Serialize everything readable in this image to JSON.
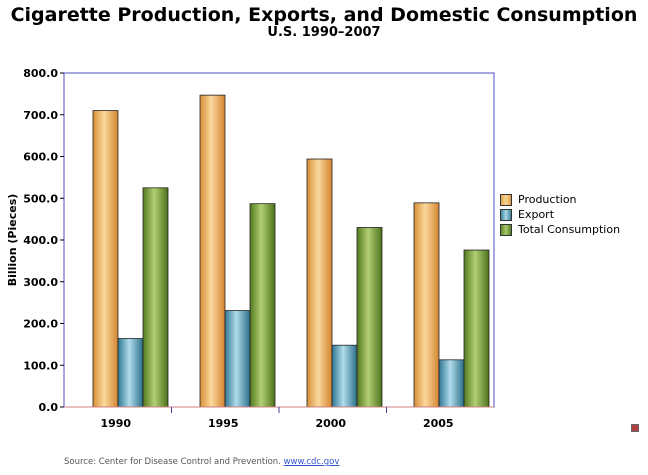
{
  "chart_data": {
    "type": "bar",
    "title": "Cigarette Production, Exports, and Domestic Consumption",
    "subtitle": "U.S. 1990–2007",
    "xlabel": "",
    "ylabel": "Billion (Pieces)",
    "ylim": [
      0,
      800
    ],
    "yticks": [
      "0.0",
      "100.0",
      "200.0",
      "300.0",
      "400.0",
      "500.0",
      "600.0",
      "700.0",
      "800.0"
    ],
    "categories": [
      "1990",
      "1995",
      "2000",
      "2005"
    ],
    "series": [
      {
        "name": "Production",
        "values": [
          710,
          747,
          594,
          489
        ]
      },
      {
        "name": "Export",
        "values": [
          164,
          231,
          148,
          113
        ]
      },
      {
        "name": "Total Consumption",
        "values": [
          525,
          487,
          430,
          376
        ]
      }
    ],
    "legend_position": "right",
    "grid": false
  },
  "source": {
    "text": "Source: Center for Disease Control and Prevention.",
    "link_text": "www.cdc.gov"
  },
  "colors": {
    "production": "#e8a54f",
    "export": "#5c9fb8",
    "total": "#7ea23f",
    "plot_border": "#5050c0",
    "axis_line": "#d08080"
  }
}
